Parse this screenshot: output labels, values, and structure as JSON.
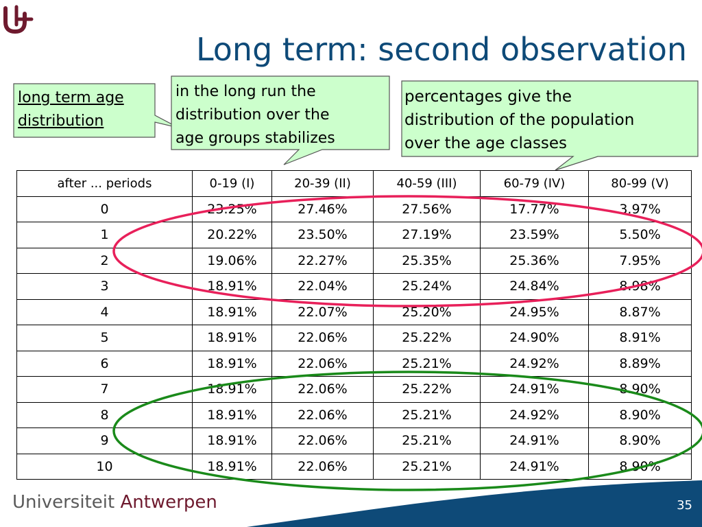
{
  "title": "Long term: second observation",
  "callouts": {
    "left": [
      "long term age",
      "distribution"
    ],
    "middle": [
      "in the long run the",
      "distribution over the",
      "age groups stabilizes"
    ],
    "right": [
      "percentages give the",
      "distribution of the population",
      "over  the age classes"
    ]
  },
  "table": {
    "headers": [
      "after ... periods",
      "0-19 (I)",
      "20-39 (II)",
      "40-59 (III)",
      "60-79 (IV)",
      "80-99 (V)"
    ],
    "rows": [
      [
        "0",
        "23.25%",
        "27.46%",
        "27.56%",
        "17.77%",
        "3.97%"
      ],
      [
        "1",
        "20.22%",
        "23.50%",
        "27.19%",
        "23.59%",
        "5.50%"
      ],
      [
        "2",
        "19.06%",
        "22.27%",
        "25.35%",
        "25.36%",
        "7.95%"
      ],
      [
        "3",
        "18.91%",
        "22.04%",
        "25.24%",
        "24.84%",
        "8.98%"
      ],
      [
        "4",
        "18.91%",
        "22.07%",
        "25.20%",
        "24.95%",
        "8.87%"
      ],
      [
        "5",
        "18.91%",
        "22.06%",
        "25.22%",
        "24.90%",
        "8.91%"
      ],
      [
        "6",
        "18.91%",
        "22.06%",
        "25.21%",
        "24.92%",
        "8.89%"
      ],
      [
        "7",
        "18.91%",
        "22.06%",
        "25.22%",
        "24.91%",
        "8.90%"
      ],
      [
        "8",
        "18.91%",
        "22.06%",
        "25.21%",
        "24.92%",
        "8.90%"
      ],
      [
        "9",
        "18.91%",
        "22.06%",
        "25.21%",
        "24.91%",
        "8.90%"
      ],
      [
        "10",
        "18.91%",
        "22.06%",
        "25.21%",
        "24.91%",
        "8.90%"
      ]
    ]
  },
  "footer": {
    "university_part1": "Universiteit",
    "university_part2": "Antwerpen",
    "page_number": "35"
  },
  "colors": {
    "title": "#0e4a78",
    "callout_fill": "#ccffcc",
    "highlight_top": "#e8205a",
    "highlight_bottom": "#1a8a1a",
    "footer_band": "#0e4a78",
    "logo": "#6e1a2e"
  }
}
